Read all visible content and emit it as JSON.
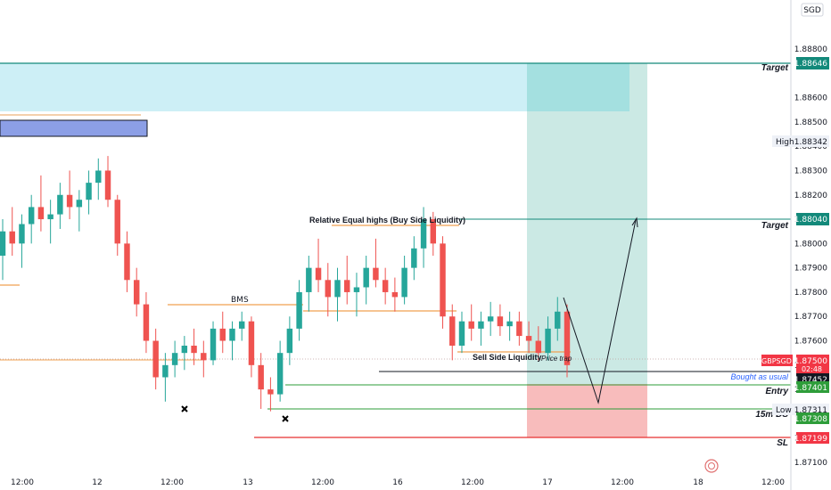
{
  "chart_data": {
    "type": "candlestick",
    "symbol": "GBPSGD",
    "currency": "SGD",
    "y_ticks": [
      "1.88800",
      "1.88600",
      "1.88500",
      "1.88400",
      "1.88300",
      "1.88200",
      "1.88100",
      "1.88000",
      "1.87900",
      "1.87800",
      "1.87700",
      "1.87600",
      "1.87500",
      "1.87400",
      "1.87300",
      "1.87200",
      "1.87100"
    ],
    "y_tick_values": [
      1.888,
      1.886,
      1.885,
      1.884,
      1.883,
      1.882,
      1.881,
      1.88,
      1.879,
      1.878,
      1.877,
      1.876,
      1.875,
      1.874,
      1.873,
      1.872,
      1.871
    ],
    "x_ticks": [
      "12:00",
      "12",
      "12:00",
      "13",
      "12:00",
      "16",
      "12:00",
      "17",
      "12:00",
      "18",
      "12:00"
    ],
    "ylim": [
      1.8704,
      1.8893
    ],
    "price_labels": {
      "target1": "1.88646",
      "high_label": "High",
      "high": "1.88342",
      "target2": "1.88040",
      "current_symbol": "GBPSGD",
      "current": "1.87500",
      "countdown": "02:48",
      "bought": "1.87452",
      "entry": "1.87401",
      "low_label": "Low",
      "low": "1.87311",
      "ds15": "1.87308",
      "sl": "1.87199"
    },
    "annotations": {
      "target_top": "Target",
      "target_mid": "Target",
      "relative_equal_highs": "Relative Equal highs  (Buy Side Liquidity)",
      "bms": "BMS",
      "sell_side_liquidity": "Sell Side Liquidity",
      "price_trap": "Price trap",
      "bought_as_usual": "Bought as usual",
      "entry": "Entry",
      "ds15": "15m DS",
      "sl": "SL"
    },
    "levels": {
      "target1": 1.88646,
      "target2": 1.8804,
      "high": 1.88342,
      "current": 1.875,
      "bought": 1.87452,
      "entry": 1.87401,
      "low": 1.87311,
      "ds15": 1.87308,
      "sl": 1.87199,
      "bms": 1.87712,
      "equal_highs": 1.8802,
      "sell_side": 1.87545,
      "orange_mid": 1.8769
    },
    "candles": [
      [
        1.8795,
        1.881,
        1.8785,
        1.8805
      ],
      [
        1.8805,
        1.8815,
        1.8795,
        1.88
      ],
      [
        1.88,
        1.8812,
        1.879,
        1.8808
      ],
      [
        1.8808,
        1.882,
        1.88,
        1.8815
      ],
      [
        1.8815,
        1.8828,
        1.8805,
        1.881
      ],
      [
        1.881,
        1.8818,
        1.88,
        1.8812
      ],
      [
        1.8812,
        1.8825,
        1.8806,
        1.882
      ],
      [
        1.882,
        1.883,
        1.881,
        1.8815
      ],
      [
        1.8815,
        1.8822,
        1.8805,
        1.8818
      ],
      [
        1.8818,
        1.883,
        1.8812,
        1.8825
      ],
      [
        1.8825,
        1.8835,
        1.8818,
        1.883
      ],
      [
        1.883,
        1.8836,
        1.8815,
        1.8818
      ],
      [
        1.8818,
        1.882,
        1.8795,
        1.88
      ],
      [
        1.88,
        1.8805,
        1.878,
        1.8785
      ],
      [
        1.8785,
        1.879,
        1.877,
        1.8775
      ],
      [
        1.8775,
        1.878,
        1.8755,
        1.876
      ],
      [
        1.876,
        1.8765,
        1.874,
        1.8745
      ],
      [
        1.8745,
        1.8755,
        1.8735,
        1.875
      ],
      [
        1.875,
        1.876,
        1.8745,
        1.8755
      ],
      [
        1.8755,
        1.8762,
        1.8748,
        1.8758
      ],
      [
        1.8758,
        1.8765,
        1.875,
        1.8755
      ],
      [
        1.8755,
        1.876,
        1.8745,
        1.8752
      ],
      [
        1.8752,
        1.8768,
        1.875,
        1.8765
      ],
      [
        1.8765,
        1.8772,
        1.8755,
        1.876
      ],
      [
        1.876,
        1.8768,
        1.8752,
        1.8765
      ],
      [
        1.8765,
        1.8772,
        1.876,
        1.8768
      ],
      [
        1.8768,
        1.877,
        1.8745,
        1.875
      ],
      [
        1.875,
        1.8755,
        1.8732,
        1.874
      ],
      [
        1.874,
        1.8745,
        1.8731,
        1.8738
      ],
      [
        1.8738,
        1.876,
        1.8735,
        1.8755
      ],
      [
        1.8755,
        1.877,
        1.875,
        1.8765
      ],
      [
        1.8765,
        1.8785,
        1.876,
        1.878
      ],
      [
        1.878,
        1.8795,
        1.8772,
        1.879
      ],
      [
        1.879,
        1.8802,
        1.878,
        1.8785
      ],
      [
        1.8785,
        1.8792,
        1.877,
        1.8778
      ],
      [
        1.8778,
        1.879,
        1.8768,
        1.8785
      ],
      [
        1.8785,
        1.8795,
        1.8775,
        1.878
      ],
      [
        1.878,
        1.8788,
        1.877,
        1.8782
      ],
      [
        1.8782,
        1.8795,
        1.8775,
        1.879
      ],
      [
        1.879,
        1.8802,
        1.8782,
        1.8785
      ],
      [
        1.8785,
        1.879,
        1.8775,
        1.878
      ],
      [
        1.878,
        1.8786,
        1.8772,
        1.8778
      ],
      [
        1.8778,
        1.8795,
        1.8775,
        1.879
      ],
      [
        1.879,
        1.8803,
        1.8785,
        1.8798
      ],
      [
        1.8798,
        1.8815,
        1.879,
        1.881
      ],
      [
        1.881,
        1.8813,
        1.8795,
        1.88
      ],
      [
        1.88,
        1.8803,
        1.8765,
        1.877
      ],
      [
        1.877,
        1.8775,
        1.8752,
        1.8758
      ],
      [
        1.8758,
        1.8772,
        1.8755,
        1.8768
      ],
      [
        1.8768,
        1.8775,
        1.876,
        1.8765
      ],
      [
        1.8765,
        1.8772,
        1.8758,
        1.8768
      ],
      [
        1.8768,
        1.8776,
        1.8762,
        1.877
      ],
      [
        1.877,
        1.8775,
        1.8762,
        1.8766
      ],
      [
        1.8766,
        1.8772,
        1.876,
        1.8768
      ],
      [
        1.8768,
        1.8772,
        1.8758,
        1.8762
      ],
      [
        1.8762,
        1.8768,
        1.8755,
        1.876
      ],
      [
        1.876,
        1.8766,
        1.8752,
        1.8755
      ],
      [
        1.8755,
        1.877,
        1.8752,
        1.8765
      ],
      [
        1.8765,
        1.8778,
        1.876,
        1.8772
      ],
      [
        1.8772,
        1.8775,
        1.8745,
        1.875
      ]
    ]
  }
}
